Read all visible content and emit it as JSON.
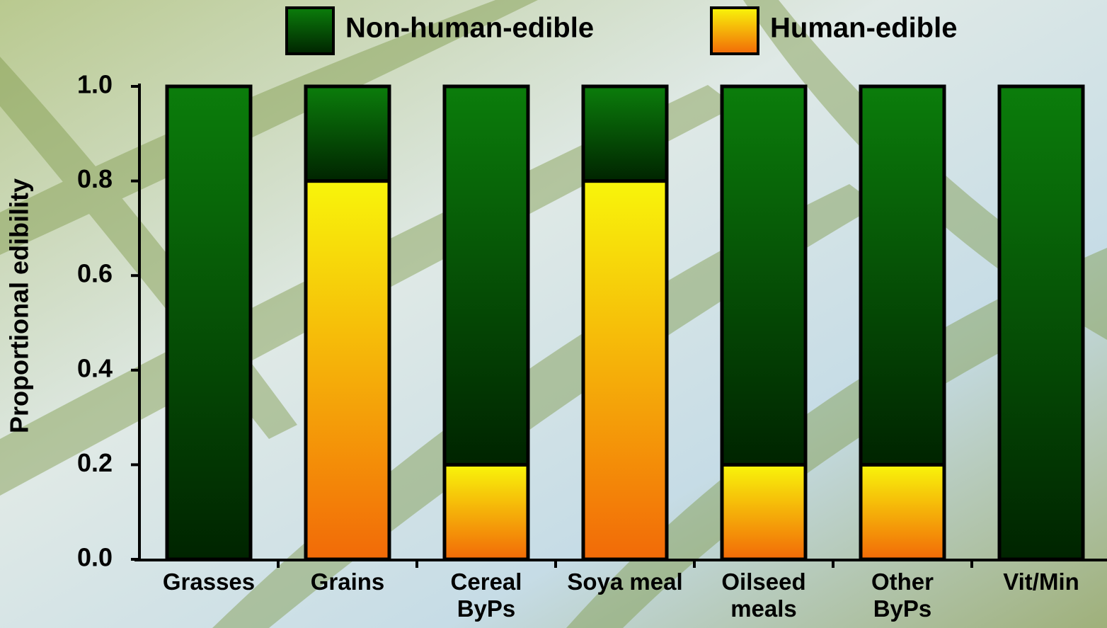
{
  "chart_data": {
    "type": "stacked-bar",
    "y_label": "Proportional edibility",
    "categories": [
      "Grasses",
      "Grains",
      "Cereal\nByPs",
      "Soya meal",
      "Oilseed\nmeals",
      "Other\nByPs",
      "Vit/Min"
    ],
    "series": [
      {
        "name": "Non-human-edible",
        "color": [
          "#0b7d0b",
          "#002400"
        ],
        "values": [
          1.0,
          0.2,
          0.8,
          0.2,
          0.8,
          0.8,
          1.0
        ]
      },
      {
        "name": "Human-edible",
        "color": [
          "#f8f50a",
          "#f26a08"
        ],
        "values": [
          0,
          0.8,
          0.2,
          0.8,
          0.2,
          0.2,
          0
        ]
      }
    ],
    "ylim": [
      0,
      1
    ],
    "yticks": [
      {
        "value": 0,
        "label": "0.0"
      },
      0.2,
      0.4,
      0.6,
      0.8,
      {
        "value": 1,
        "label": "1.0"
      }
    ]
  }
}
